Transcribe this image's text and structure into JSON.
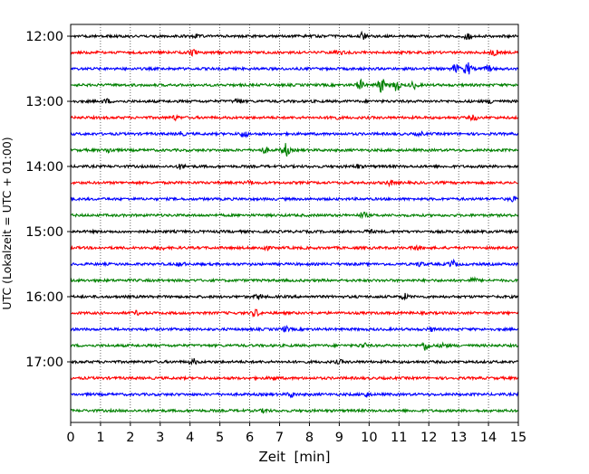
{
  "chart_data": {
    "type": "line",
    "title": "",
    "xlabel": "Zeit  [min]",
    "ylabel": "UTC (Lokalzeit = UTC + 01:00)",
    "xlim": [
      0,
      15
    ],
    "x_ticks": [
      0,
      1,
      2,
      3,
      4,
      5,
      6,
      7,
      8,
      9,
      10,
      11,
      12,
      13,
      14,
      15
    ],
    "x_tick_labels": [
      "0",
      "1",
      "2",
      "3",
      "4",
      "5",
      "6",
      "7",
      "8",
      "9",
      "10",
      "11",
      "12",
      "13",
      "14",
      "15"
    ],
    "y_tick_labels": [
      "12:00",
      "13:00",
      "14:00",
      "15:00",
      "16:00",
      "17:00"
    ],
    "y_tick_traces": [
      0,
      4,
      8,
      12,
      16,
      20
    ],
    "trace_interval_min": 15,
    "grid": "vertical dotted",
    "trace_colors": [
      "#000000",
      "#ff0000",
      "#0000ff",
      "#008000"
    ],
    "traces": [
      {
        "start": "12:00",
        "events": [
          {
            "t": 9.8,
            "amp": 0.45
          },
          {
            "t": 13.3,
            "amp": 0.35
          },
          {
            "t": 4.2,
            "amp": 0.25
          }
        ]
      },
      {
        "start": "12:15",
        "events": [
          {
            "t": 4.1,
            "amp": 0.3
          },
          {
            "t": 14.2,
            "amp": 0.35
          },
          {
            "t": 9.0,
            "amp": 0.25
          }
        ]
      },
      {
        "start": "12:30",
        "events": [
          {
            "t": 12.9,
            "amp": 0.5
          },
          {
            "t": 13.3,
            "amp": 0.8
          },
          {
            "t": 14.0,
            "amp": 0.35
          }
        ]
      },
      {
        "start": "12:45",
        "events": [
          {
            "t": 9.7,
            "amp": 0.6
          },
          {
            "t": 10.4,
            "amp": 1.0
          },
          {
            "t": 10.9,
            "amp": 0.8
          },
          {
            "t": 11.5,
            "amp": 0.4
          }
        ]
      },
      {
        "start": "13:00",
        "events": [
          {
            "t": 5.6,
            "amp": 0.35
          },
          {
            "t": 1.2,
            "amp": 0.25
          },
          {
            "t": 14.1,
            "amp": 0.25
          }
        ]
      },
      {
        "start": "13:15",
        "events": [
          {
            "t": 8.8,
            "amp": 0.35
          },
          {
            "t": 3.5,
            "amp": 0.25
          },
          {
            "t": 13.5,
            "amp": 0.3
          }
        ]
      },
      {
        "start": "13:30",
        "events": [
          {
            "t": 5.8,
            "amp": 0.45
          },
          {
            "t": 3.7,
            "amp": 0.2
          },
          {
            "t": 11.7,
            "amp": 0.2
          }
        ]
      },
      {
        "start": "13:45",
        "events": [
          {
            "t": 7.2,
            "amp": 0.85
          },
          {
            "t": 1.3,
            "amp": 0.3
          },
          {
            "t": 6.5,
            "amp": 0.35
          }
        ]
      },
      {
        "start": "14:00",
        "events": [
          {
            "t": 3.7,
            "amp": 0.3
          },
          {
            "t": 9.6,
            "amp": 0.25
          }
        ]
      },
      {
        "start": "14:15",
        "events": [
          {
            "t": 10.7,
            "amp": 0.3
          },
          {
            "t": 6.0,
            "amp": 0.2
          }
        ]
      },
      {
        "start": "14:30",
        "events": [
          {
            "t": 14.8,
            "amp": 0.25
          }
        ]
      },
      {
        "start": "14:45",
        "events": [
          {
            "t": 9.8,
            "amp": 0.35
          }
        ]
      },
      {
        "start": "15:00",
        "events": [
          {
            "t": 10.0,
            "amp": 0.2
          }
        ]
      },
      {
        "start": "15:15",
        "events": [
          {
            "t": 6.5,
            "amp": 0.35
          },
          {
            "t": 11.6,
            "amp": 0.3
          },
          {
            "t": 3.0,
            "amp": 0.2
          }
        ]
      },
      {
        "start": "15:30",
        "events": [
          {
            "t": 12.8,
            "amp": 0.45
          },
          {
            "t": 3.7,
            "amp": 0.3
          },
          {
            "t": 11.7,
            "amp": 0.25
          }
        ]
      },
      {
        "start": "15:45",
        "events": [
          {
            "t": 13.5,
            "amp": 0.25
          }
        ]
      },
      {
        "start": "16:00",
        "events": [
          {
            "t": 11.2,
            "amp": 0.35
          },
          {
            "t": 6.3,
            "amp": 0.3
          }
        ]
      },
      {
        "start": "16:15",
        "events": [
          {
            "t": 6.2,
            "amp": 0.45
          },
          {
            "t": 2.2,
            "amp": 0.2
          }
        ]
      },
      {
        "start": "16:30",
        "events": [
          {
            "t": 7.2,
            "amp": 0.3
          },
          {
            "t": 12.1,
            "amp": 0.2
          }
        ]
      },
      {
        "start": "16:45",
        "events": [
          {
            "t": 11.9,
            "amp": 0.6
          },
          {
            "t": 9.8,
            "amp": 0.3
          },
          {
            "t": 12.5,
            "amp": 0.3
          }
        ]
      },
      {
        "start": "17:00",
        "events": [
          {
            "t": 4.1,
            "amp": 0.35
          },
          {
            "t": 9.0,
            "amp": 0.2
          }
        ]
      },
      {
        "start": "17:15",
        "events": [
          {
            "t": 6.8,
            "amp": 0.2
          }
        ]
      },
      {
        "start": "17:30",
        "events": [
          {
            "t": 7.4,
            "amp": 0.3
          },
          {
            "t": 9.9,
            "amp": 0.3
          }
        ]
      },
      {
        "start": "17:45",
        "events": [
          {
            "t": 6.5,
            "amp": 0.2
          }
        ]
      }
    ]
  }
}
